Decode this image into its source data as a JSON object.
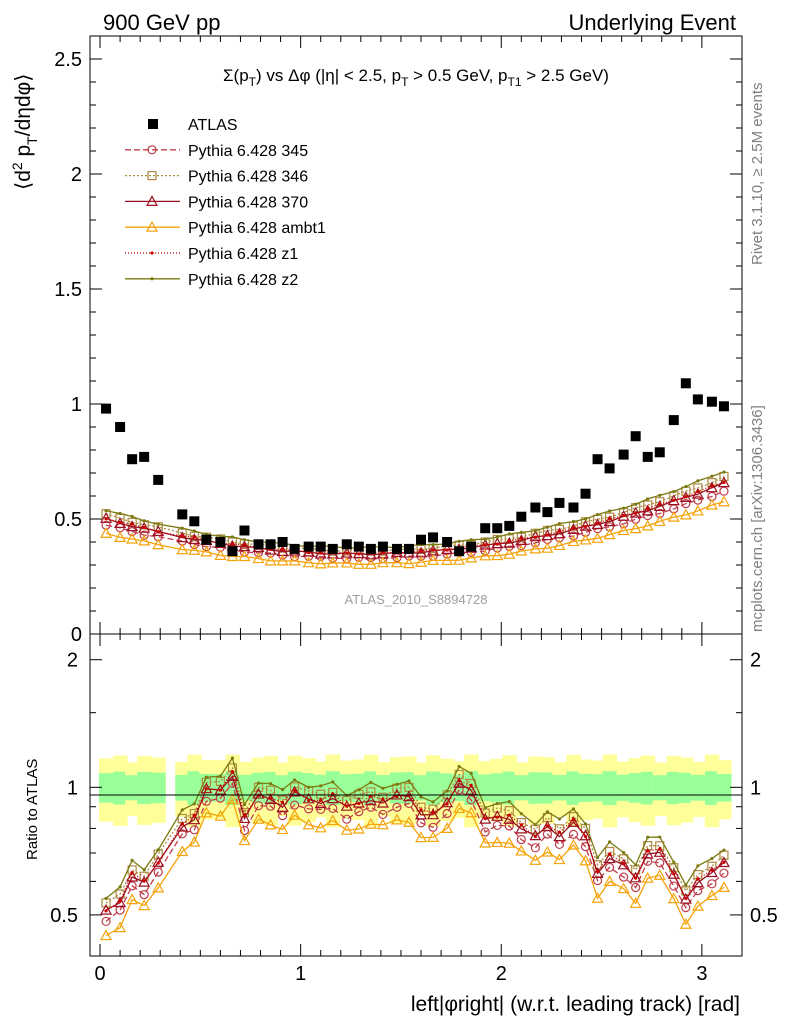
{
  "header": {
    "left": "900 GeV pp",
    "right": "Underlying Event"
  },
  "side": {
    "rivet": "Rivet 3.1.10, ≥ 2.5M events",
    "mcplots": "mcplots.cern.ch [arXiv:1306.3436]"
  },
  "chart_data": {
    "type": "scatter",
    "title": "Σ(p_T) vs Δφ (|η| < 2.5, p_T > 0.5 GeV, p_T1 > 2.5 GeV)",
    "ylabel": "⟨d² p_T/dηdφ⟩",
    "ratio_ylabel": "Ratio to ATLAS",
    "xlabel": "left|φright| (w.r.t. leading track) [rad]",
    "watermark": "ATLAS_2010_S8894728",
    "xlim": [
      -0.05,
      3.2
    ],
    "ylim": [
      0,
      2.6
    ],
    "ratio_ylim": [
      0.4,
      2.3
    ],
    "xticks": [
      "0",
      "1",
      "2",
      "3"
    ],
    "yticks": [
      "0.5",
      "1",
      "1.5",
      "2",
      "2.5"
    ],
    "ratio_yticks": [
      "0.5",
      "1",
      "2"
    ],
    "x": [
      0.03,
      0.1,
      0.16,
      0.22,
      0.29,
      0.41,
      0.47,
      0.53,
      0.6,
      0.66,
      0.72,
      0.79,
      0.85,
      0.91,
      0.97,
      1.04,
      1.1,
      1.16,
      1.23,
      1.29,
      1.35,
      1.41,
      1.48,
      1.54,
      1.6,
      1.66,
      1.73,
      1.79,
      1.85,
      1.92,
      1.98,
      2.04,
      2.1,
      2.17,
      2.23,
      2.29,
      2.36,
      2.42,
      2.48,
      2.54,
      2.61,
      2.67,
      2.73,
      2.79,
      2.86,
      2.92,
      2.98,
      3.05,
      3.11
    ],
    "atlas": [
      0.98,
      0.9,
      0.76,
      0.77,
      0.67,
      0.52,
      0.49,
      0.41,
      0.4,
      0.36,
      0.45,
      0.39,
      0.39,
      0.4,
      0.37,
      0.38,
      0.38,
      0.37,
      0.39,
      0.38,
      0.37,
      0.38,
      0.37,
      0.37,
      0.41,
      0.42,
      0.4,
      0.36,
      0.38,
      0.46,
      0.46,
      0.47,
      0.51,
      0.55,
      0.53,
      0.57,
      0.55,
      0.61,
      0.76,
      0.72,
      0.78,
      0.86,
      0.77,
      0.79,
      0.93,
      1.09,
      1.02,
      1.01,
      0.99
    ],
    "bands": {
      "inner": 0.08,
      "outer": 0.17
    },
    "series": [
      {
        "name": "Pythia 6.428 345",
        "color": "#be3c4a",
        "marker": "circle-open",
        "dash": "6,3",
        "level": 0.93,
        "values": []
      },
      {
        "name": "Pythia 6.428 346",
        "color": "#ae8a42",
        "marker": "square-open",
        "dash": "2,2",
        "level": 1.02,
        "values": []
      },
      {
        "name": "Pythia 6.428 370",
        "color": "#9b1020",
        "marker": "triangle-open",
        "dash": "",
        "level": 0.98,
        "values": []
      },
      {
        "name": "Pythia 6.428 ambt1",
        "color": "#f5a30a",
        "marker": "triangle-open",
        "dash": "",
        "level": 0.86,
        "values": []
      },
      {
        "name": "Pythia 6.428 z1",
        "color": "#cc0000",
        "marker": "dot",
        "dash": "1,2",
        "level": 0.99,
        "values": []
      },
      {
        "name": "Pythia 6.428 z2",
        "color": "#7a7a10",
        "marker": "dot",
        "dash": "",
        "level": 1.06,
        "values": []
      }
    ]
  }
}
